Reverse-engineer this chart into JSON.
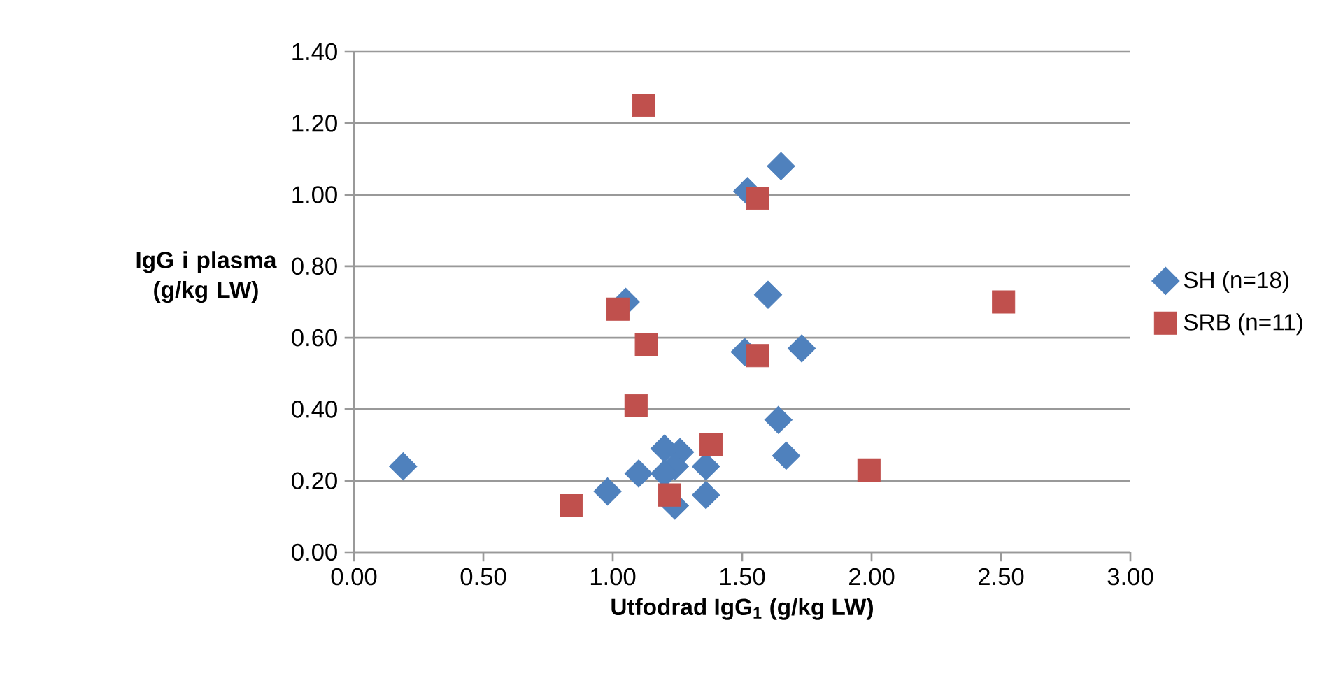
{
  "chart_data": {
    "type": "scatter",
    "xlabel": "Utfodrad IgG$_{1}$ (g/kg LW)",
    "ylabel": "IgG i plasma (g/kg LW)",
    "xlim": [
      0,
      3
    ],
    "xticks": [
      {
        "value": 0,
        "label": "0.00"
      },
      {
        "value": 0.5,
        "label": "0.50"
      },
      {
        "value": 1,
        "label": "1.00"
      },
      {
        "value": 1.5,
        "label": "1.50"
      },
      {
        "value": 2,
        "label": "2.00"
      },
      {
        "value": 2.5,
        "label": "2.50"
      },
      {
        "value": 3,
        "label": "3.00"
      }
    ],
    "ylim": [
      0,
      1.4
    ],
    "yticks": [
      {
        "value": 0,
        "label": "0.00"
      },
      {
        "value": 0.2,
        "label": "0.20"
      },
      {
        "value": 0.4,
        "label": "0.40"
      },
      {
        "value": 0.6,
        "label": "0.60"
      },
      {
        "value": 0.8,
        "label": "0.80"
      },
      {
        "value": 1,
        "label": "1.00"
      },
      {
        "value": 1.2,
        "label": "1.20"
      },
      {
        "value": 1.4,
        "label": "1.40"
      }
    ],
    "grid": "y",
    "legend": "right",
    "series": [
      {
        "name": "SH (n=18)",
        "color": "#4f81bd",
        "marker": "diamond",
        "x": [
          0.19,
          0.98,
          1.1,
          1.2,
          1.26,
          1.24,
          1.2,
          1.24,
          1.36,
          1.36,
          1.05,
          1.52,
          1.65,
          1.6,
          1.51,
          1.73,
          1.64,
          1.67
        ],
        "values": [
          0.24,
          0.17,
          0.22,
          0.29,
          0.28,
          0.24,
          0.22,
          0.13,
          0.24,
          0.16,
          0.7,
          1.01,
          1.08,
          0.72,
          0.56,
          0.57,
          0.37,
          0.27
        ]
      },
      {
        "name": "SRB (n=11)",
        "color": "#c0504d",
        "marker": "square",
        "x": [
          1.12,
          1.56,
          1.02,
          1.13,
          1.56,
          1.09,
          1.38,
          0.84,
          1.22,
          1.99,
          2.51
        ],
        "values": [
          1.25,
          0.99,
          0.68,
          0.58,
          0.55,
          0.41,
          0.3,
          0.13,
          0.16,
          0.23,
          0.7
        ]
      }
    ]
  }
}
